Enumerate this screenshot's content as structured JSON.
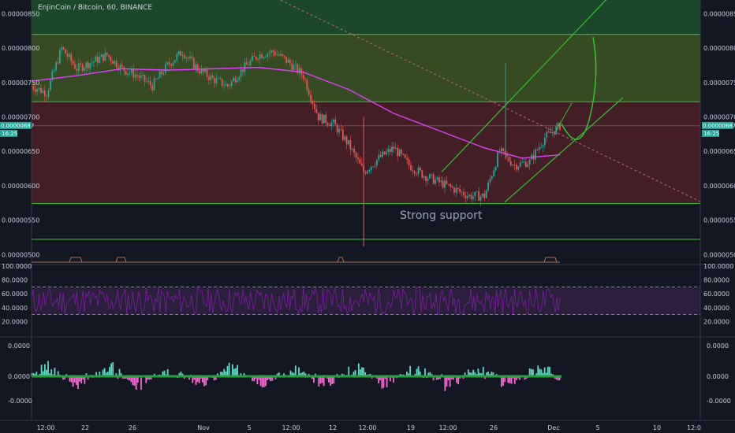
{
  "chart_data": {
    "type": "candlestick",
    "title": "EnjinCoin / Bitcoin, 60, BINANCE",
    "annotation": "Strong support",
    "current_price_label": "0.00000687",
    "countdown_label": "16:25",
    "price_axis": {
      "ticks": [
        "0.00000850",
        "0.00000800",
        "0.00000750",
        "0.00000700",
        "0.00000650",
        "0.00000600",
        "0.00000550",
        "0.00000500"
      ],
      "tick_values": [
        850,
        800,
        750,
        700,
        650,
        600,
        550,
        500
      ],
      "ylim": [
        490,
        870
      ]
    },
    "zones": [
      {
        "name": "resistance-zone-green",
        "from": 722,
        "to": 870,
        "color": "#1e4d2b"
      },
      {
        "name": "mid-zone-olive",
        "from": 722,
        "to": 820,
        "color": "#3a4a22"
      },
      {
        "name": "red-zone",
        "from": 574,
        "to": 722,
        "color": "#4a1f26"
      }
    ],
    "horizontal_lines": [
      820,
      722,
      574,
      522
    ],
    "price_series": [
      {
        "t": 0,
        "v": 745
      },
      {
        "t": 20,
        "v": 735
      },
      {
        "t": 40,
        "v": 800
      },
      {
        "t": 60,
        "v": 770
      },
      {
        "t": 80,
        "v": 780
      },
      {
        "t": 100,
        "v": 790
      },
      {
        "t": 120,
        "v": 770
      },
      {
        "t": 140,
        "v": 760
      },
      {
        "t": 160,
        "v": 745
      },
      {
        "t": 180,
        "v": 775
      },
      {
        "t": 200,
        "v": 795
      },
      {
        "t": 220,
        "v": 770
      },
      {
        "t": 240,
        "v": 755
      },
      {
        "t": 260,
        "v": 745
      },
      {
        "t": 280,
        "v": 770
      },
      {
        "t": 300,
        "v": 790
      },
      {
        "t": 320,
        "v": 795
      },
      {
        "t": 340,
        "v": 780
      },
      {
        "t": 360,
        "v": 760
      },
      {
        "t": 380,
        "v": 700
      },
      {
        "t": 400,
        "v": 690
      },
      {
        "t": 420,
        "v": 660
      },
      {
        "t": 440,
        "v": 620
      },
      {
        "t": 460,
        "v": 640
      },
      {
        "t": 480,
        "v": 655
      },
      {
        "t": 500,
        "v": 630
      },
      {
        "t": 520,
        "v": 615
      },
      {
        "t": 540,
        "v": 605
      },
      {
        "t": 560,
        "v": 595
      },
      {
        "t": 580,
        "v": 585
      },
      {
        "t": 600,
        "v": 585
      },
      {
        "t": 620,
        "v": 650
      },
      {
        "t": 640,
        "v": 630
      },
      {
        "t": 660,
        "v": 635
      },
      {
        "t": 680,
        "v": 670
      },
      {
        "t": 700,
        "v": 687
      }
    ],
    "ma_series": [
      {
        "t": 0,
        "v": 752
      },
      {
        "t": 60,
        "v": 760
      },
      {
        "t": 120,
        "v": 770
      },
      {
        "t": 180,
        "v": 768
      },
      {
        "t": 240,
        "v": 770
      },
      {
        "t": 300,
        "v": 772
      },
      {
        "t": 360,
        "v": 765
      },
      {
        "t": 420,
        "v": 740
      },
      {
        "t": 480,
        "v": 705
      },
      {
        "t": 540,
        "v": 680
      },
      {
        "t": 600,
        "v": 655
      },
      {
        "t": 650,
        "v": 640
      },
      {
        "t": 700,
        "v": 645
      }
    ],
    "rsi_axis": {
      "ticks": [
        "100.0000",
        "80.0000",
        "60.0000",
        "40.0000",
        "20.0000"
      ],
      "tick_values": [
        100,
        80,
        60,
        40,
        20
      ]
    },
    "macd_axis": {
      "ticks": [
        "0.0000",
        "0.0000",
        "-0.0000"
      ]
    },
    "x_axis": {
      "labels": [
        "12:00",
        "22",
        "26",
        "Nov",
        "5",
        "12:00",
        "12",
        "12:00",
        "19",
        "12:00",
        "26",
        "Dec",
        "5",
        "10",
        "12:0"
      ]
    },
    "colors": {
      "up": "#26a69a",
      "down": "#ef5350",
      "ma": "#e040fb",
      "trend": "#31c431",
      "rsi": "#7b1fa2",
      "hist_up": "#5fd9c4",
      "hist_down": "#f06ecf"
    }
  }
}
